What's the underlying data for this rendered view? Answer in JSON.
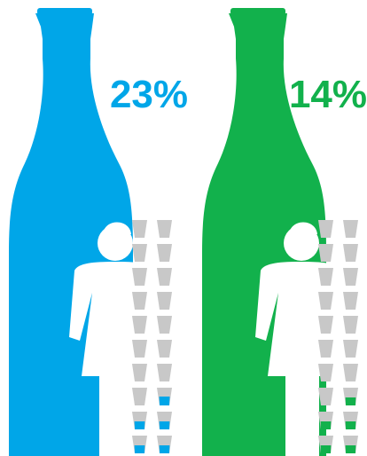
{
  "chart_data": {
    "type": "pictograph",
    "panels": [
      {
        "label": "23%",
        "value": 23,
        "color": "#00A6E8",
        "cups_filled": 3,
        "cups_full": 1,
        "cups_total": 20
      },
      {
        "label": "14%",
        "value": 14,
        "color": "#12B14C",
        "cups_filled": 3,
        "cups_full": 0,
        "cups_total": 20
      }
    ]
  },
  "icons": {
    "bottle": "bottle-icon",
    "person": "woman-icon",
    "cup": "cup-icon"
  },
  "colors": {
    "cup_empty": "#C8C8C8",
    "figure": "#FFFFFF"
  }
}
